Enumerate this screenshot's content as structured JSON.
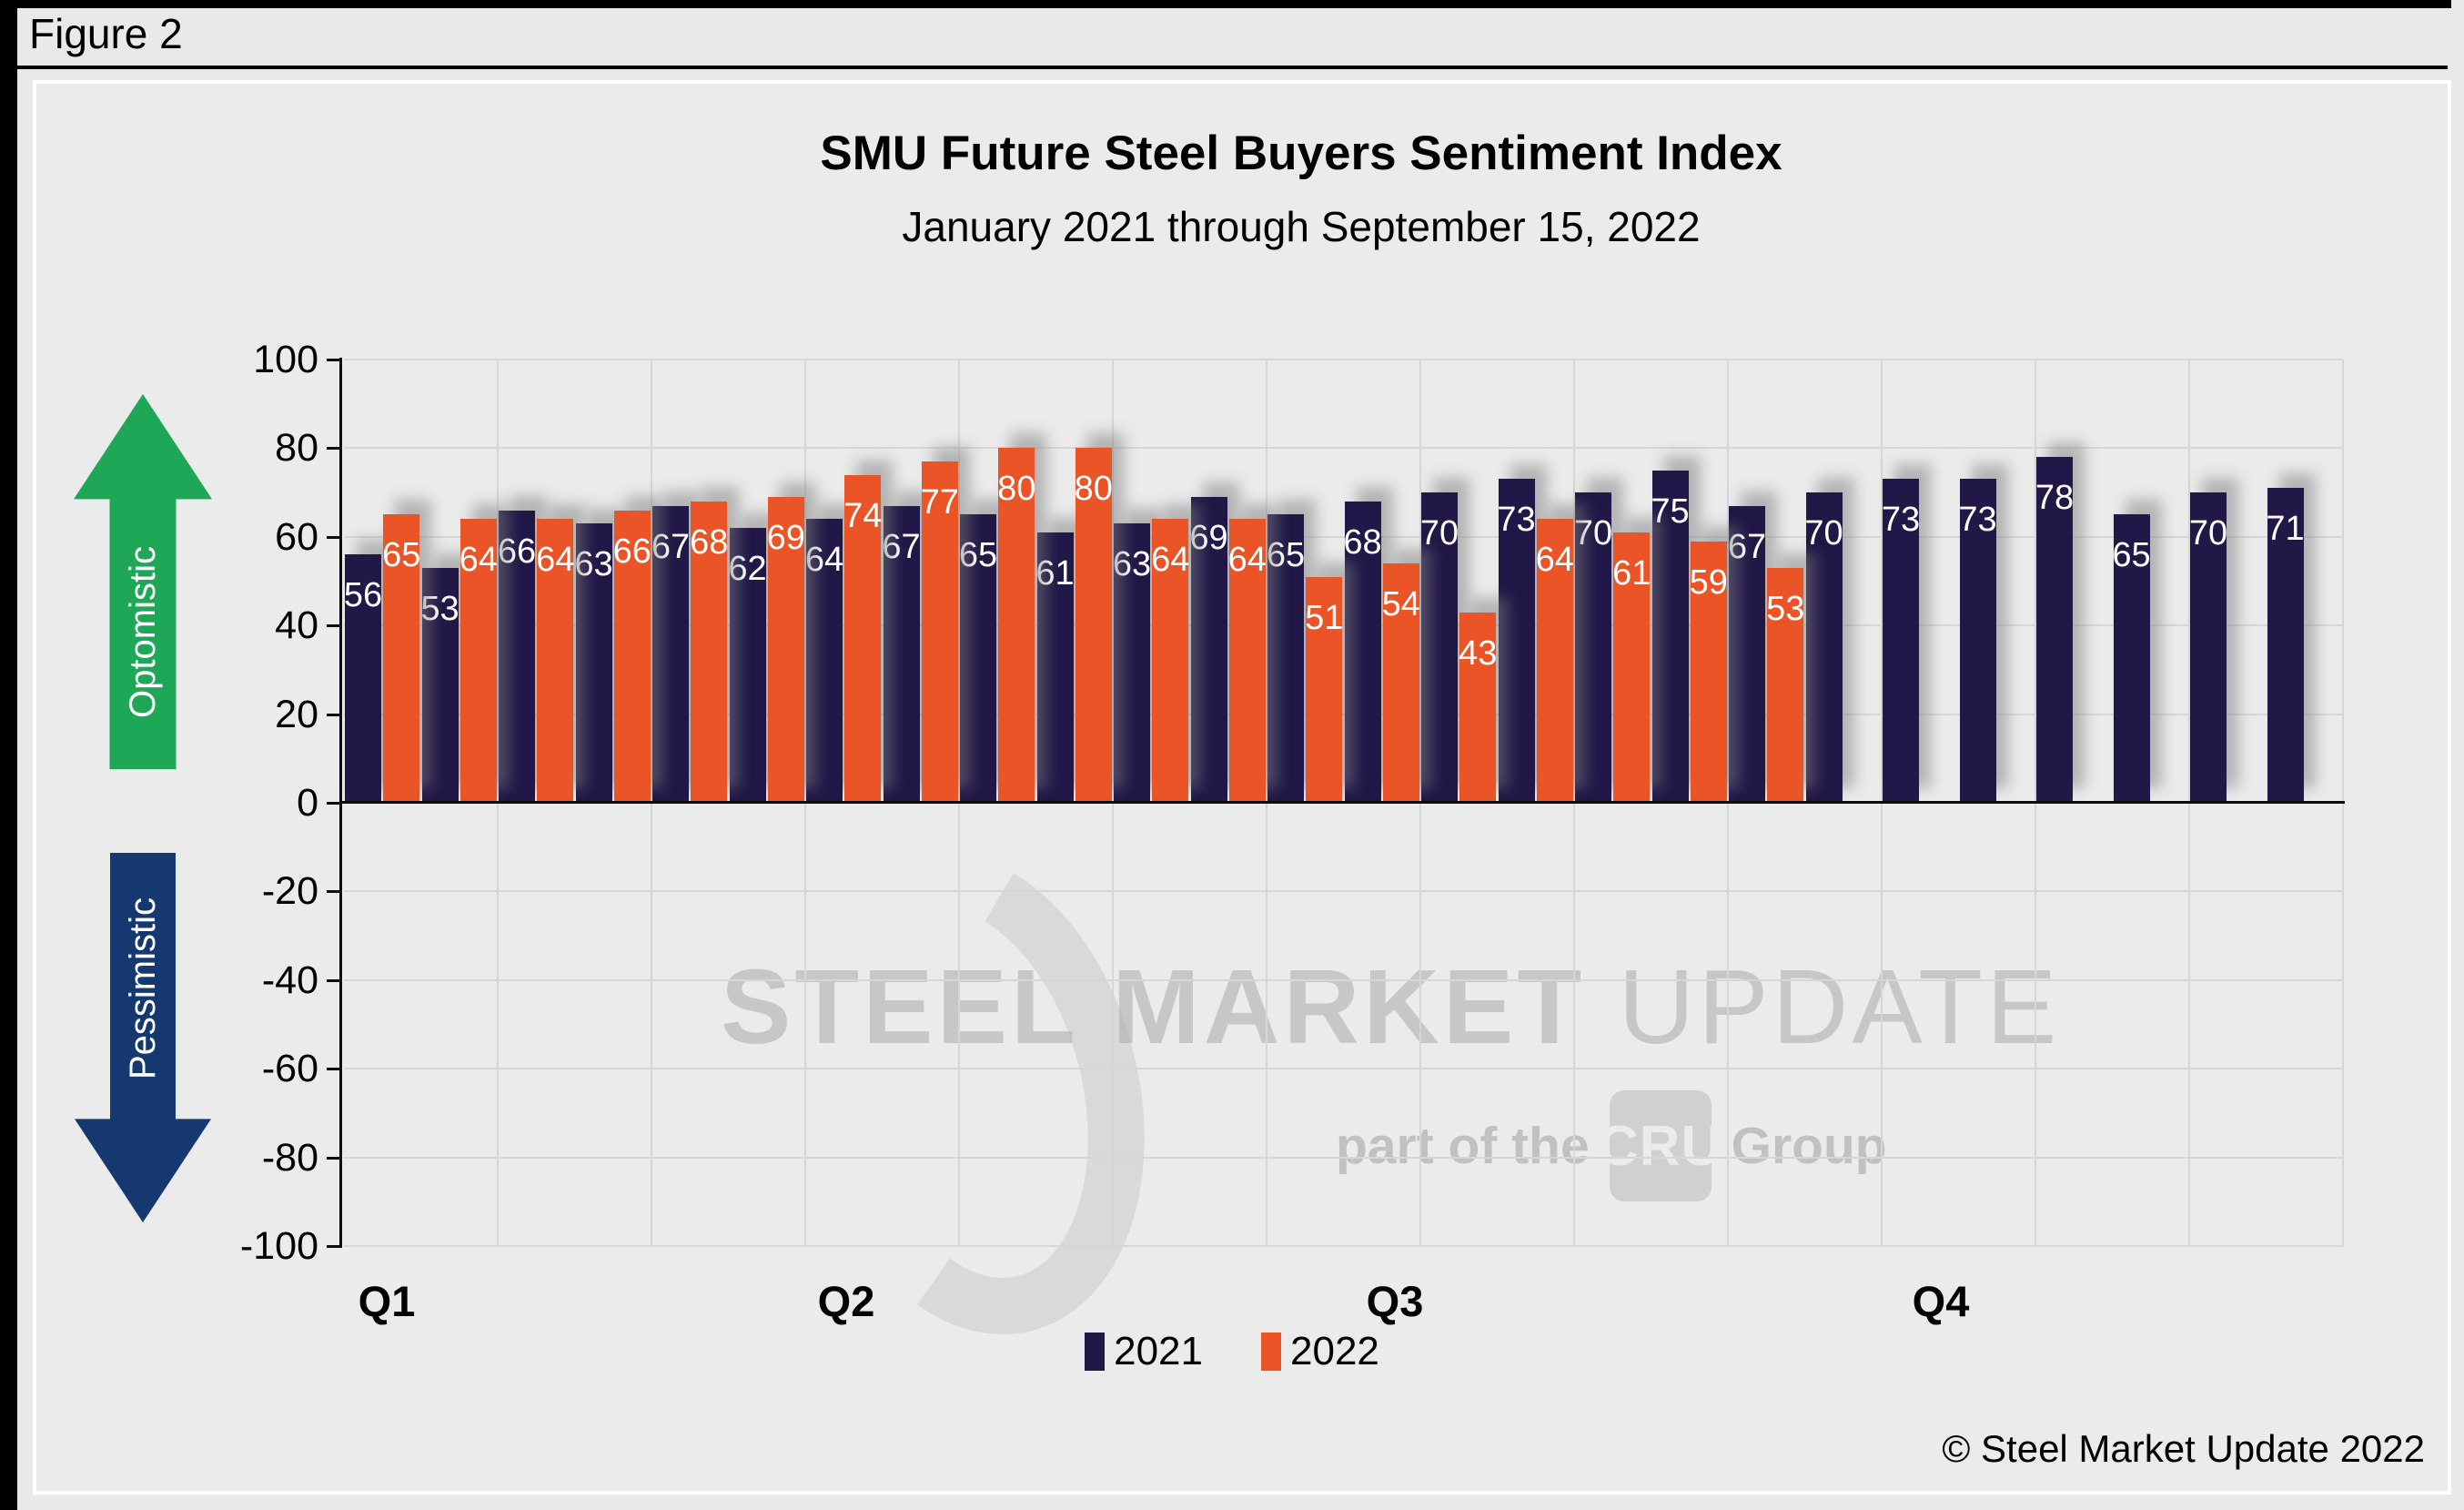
{
  "figure_label": "Figure 2",
  "chart": {
    "title": "SMU Future Steel Buyers Sentiment Index",
    "subtitle": "January 2021 through September 15, 2022",
    "optimistic_label": "Optomistic",
    "pessimistic_label": "Pessimistic",
    "copyright": "© Steel Market Update 2022",
    "watermark": {
      "word1": "STEEL",
      "word2": "MARKET",
      "word3": "UPDATE",
      "tagline_prefix": "part of the",
      "badge": "CRU",
      "tagline_suffix": "Group"
    }
  },
  "chart_data": {
    "type": "bar",
    "title": "SMU Future Steel Buyers Sentiment Index",
    "subtitle": "January 2021 through September 15, 2022",
    "categories": [
      "Q1",
      "Q2",
      "Q3",
      "Q4"
    ],
    "y_axis": {
      "min": -100,
      "max": 100,
      "tick_step": 20,
      "ticks": [
        100,
        80,
        60,
        40,
        20,
        0,
        -20,
        -40,
        -60,
        -80,
        -100
      ],
      "positive_meaning": "Optomistic",
      "negative_meaning": "Pessimistic"
    },
    "series": [
      {
        "name": "2021",
        "color": "#221848",
        "values": [
          56,
          53,
          66,
          63,
          67,
          62,
          64,
          67,
          65,
          61,
          63,
          69,
          65,
          68,
          70,
          73,
          70,
          75,
          67,
          70,
          73,
          73,
          78,
          65,
          70,
          71
        ]
      },
      {
        "name": "2022",
        "color": "#eb5426",
        "values": [
          65,
          64,
          64,
          66,
          68,
          69,
          74,
          77,
          80,
          80,
          64,
          64,
          51,
          54,
          43,
          64,
          61,
          59,
          53
        ]
      }
    ],
    "arrangement": "interleaved-pairs",
    "legend_position": "bottom",
    "grid": true,
    "vertical_gridline_count": 13
  },
  "colors": {
    "bar_2021": "#221848",
    "bar_2022": "#eb5426",
    "optimistic_arrow": "#1ea756",
    "pessimistic_arrow": "#14386f",
    "background": "#e9e9e9",
    "gridline": "#d6d6d6",
    "axis": "#000000",
    "watermark": "#d2d2d2"
  }
}
